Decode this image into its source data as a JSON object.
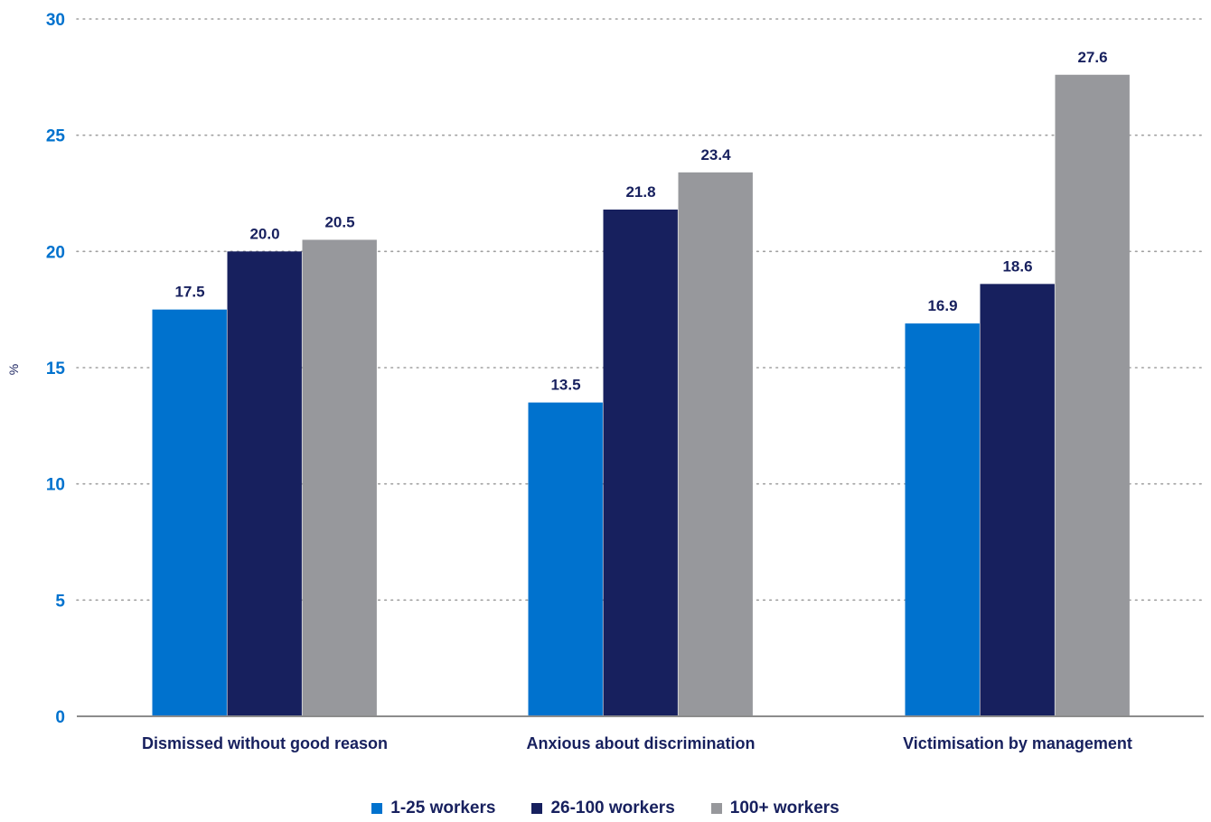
{
  "colors": {
    "axis_tick": "#0072CE",
    "text_dark": "#17205E",
    "grid": "#A0A0A0",
    "baseline": "#8C8C8C"
  },
  "chart_data": {
    "type": "bar",
    "title": "",
    "xlabel": "",
    "ylabel": "%",
    "ylim": [
      0,
      30
    ],
    "yticks": [
      0,
      5,
      10,
      15,
      20,
      25,
      30
    ],
    "grid": true,
    "grid_style": "dotted",
    "legend_position": "bottom-center",
    "categories": [
      "Dismissed without good reason",
      "Anxious about discrimination",
      "Victimisation by management"
    ],
    "series": [
      {
        "name": "1-25 workers",
        "color": "#0072CE",
        "values": [
          17.5,
          13.5,
          16.9
        ]
      },
      {
        "name": "26-100 workers",
        "color": "#17205E",
        "values": [
          20.0,
          21.8,
          18.6
        ]
      },
      {
        "name": "100+ workers",
        "color": "#97989C",
        "values": [
          20.5,
          23.4,
          27.6
        ]
      }
    ],
    "data_labels": [
      [
        "17.5",
        "13.5",
        "16.9"
      ],
      [
        "20.0",
        "21.8",
        "18.6"
      ],
      [
        "20.5",
        "23.4",
        "27.6"
      ]
    ]
  }
}
